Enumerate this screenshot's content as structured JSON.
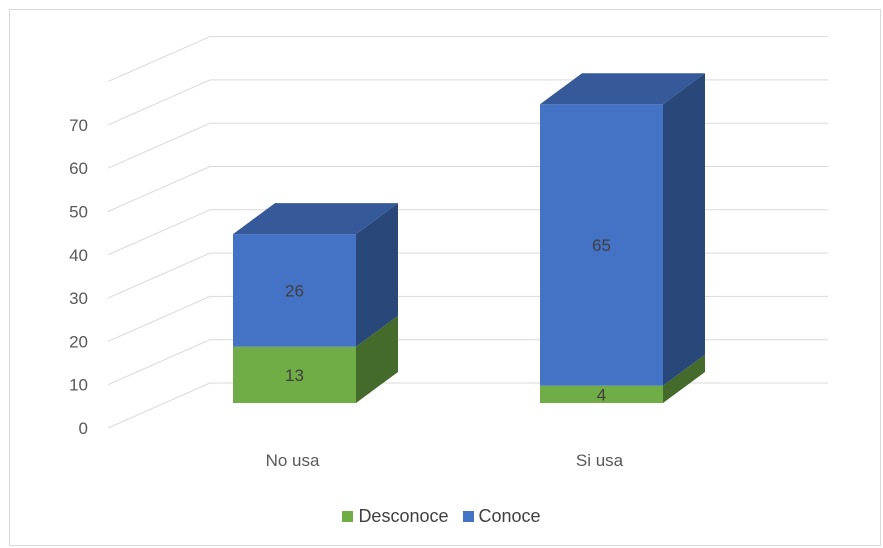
{
  "chart_data": {
    "type": "bar",
    "stacked": true,
    "style": "3d",
    "categories": [
      "No usa",
      "Si usa"
    ],
    "series": [
      {
        "name": "Desconoce",
        "values": [
          13,
          4
        ],
        "color": "#70ad47"
      },
      {
        "name": "Conoce",
        "values": [
          26,
          65
        ],
        "color": "#4472c4"
      }
    ],
    "data_labels": true,
    "yticks": [
      0,
      10,
      20,
      30,
      40,
      50,
      60,
      70
    ],
    "ylim": [
      0,
      80
    ],
    "grid": true,
    "legend": "bottom",
    "title": "",
    "xlabel": "",
    "ylabel": ""
  }
}
